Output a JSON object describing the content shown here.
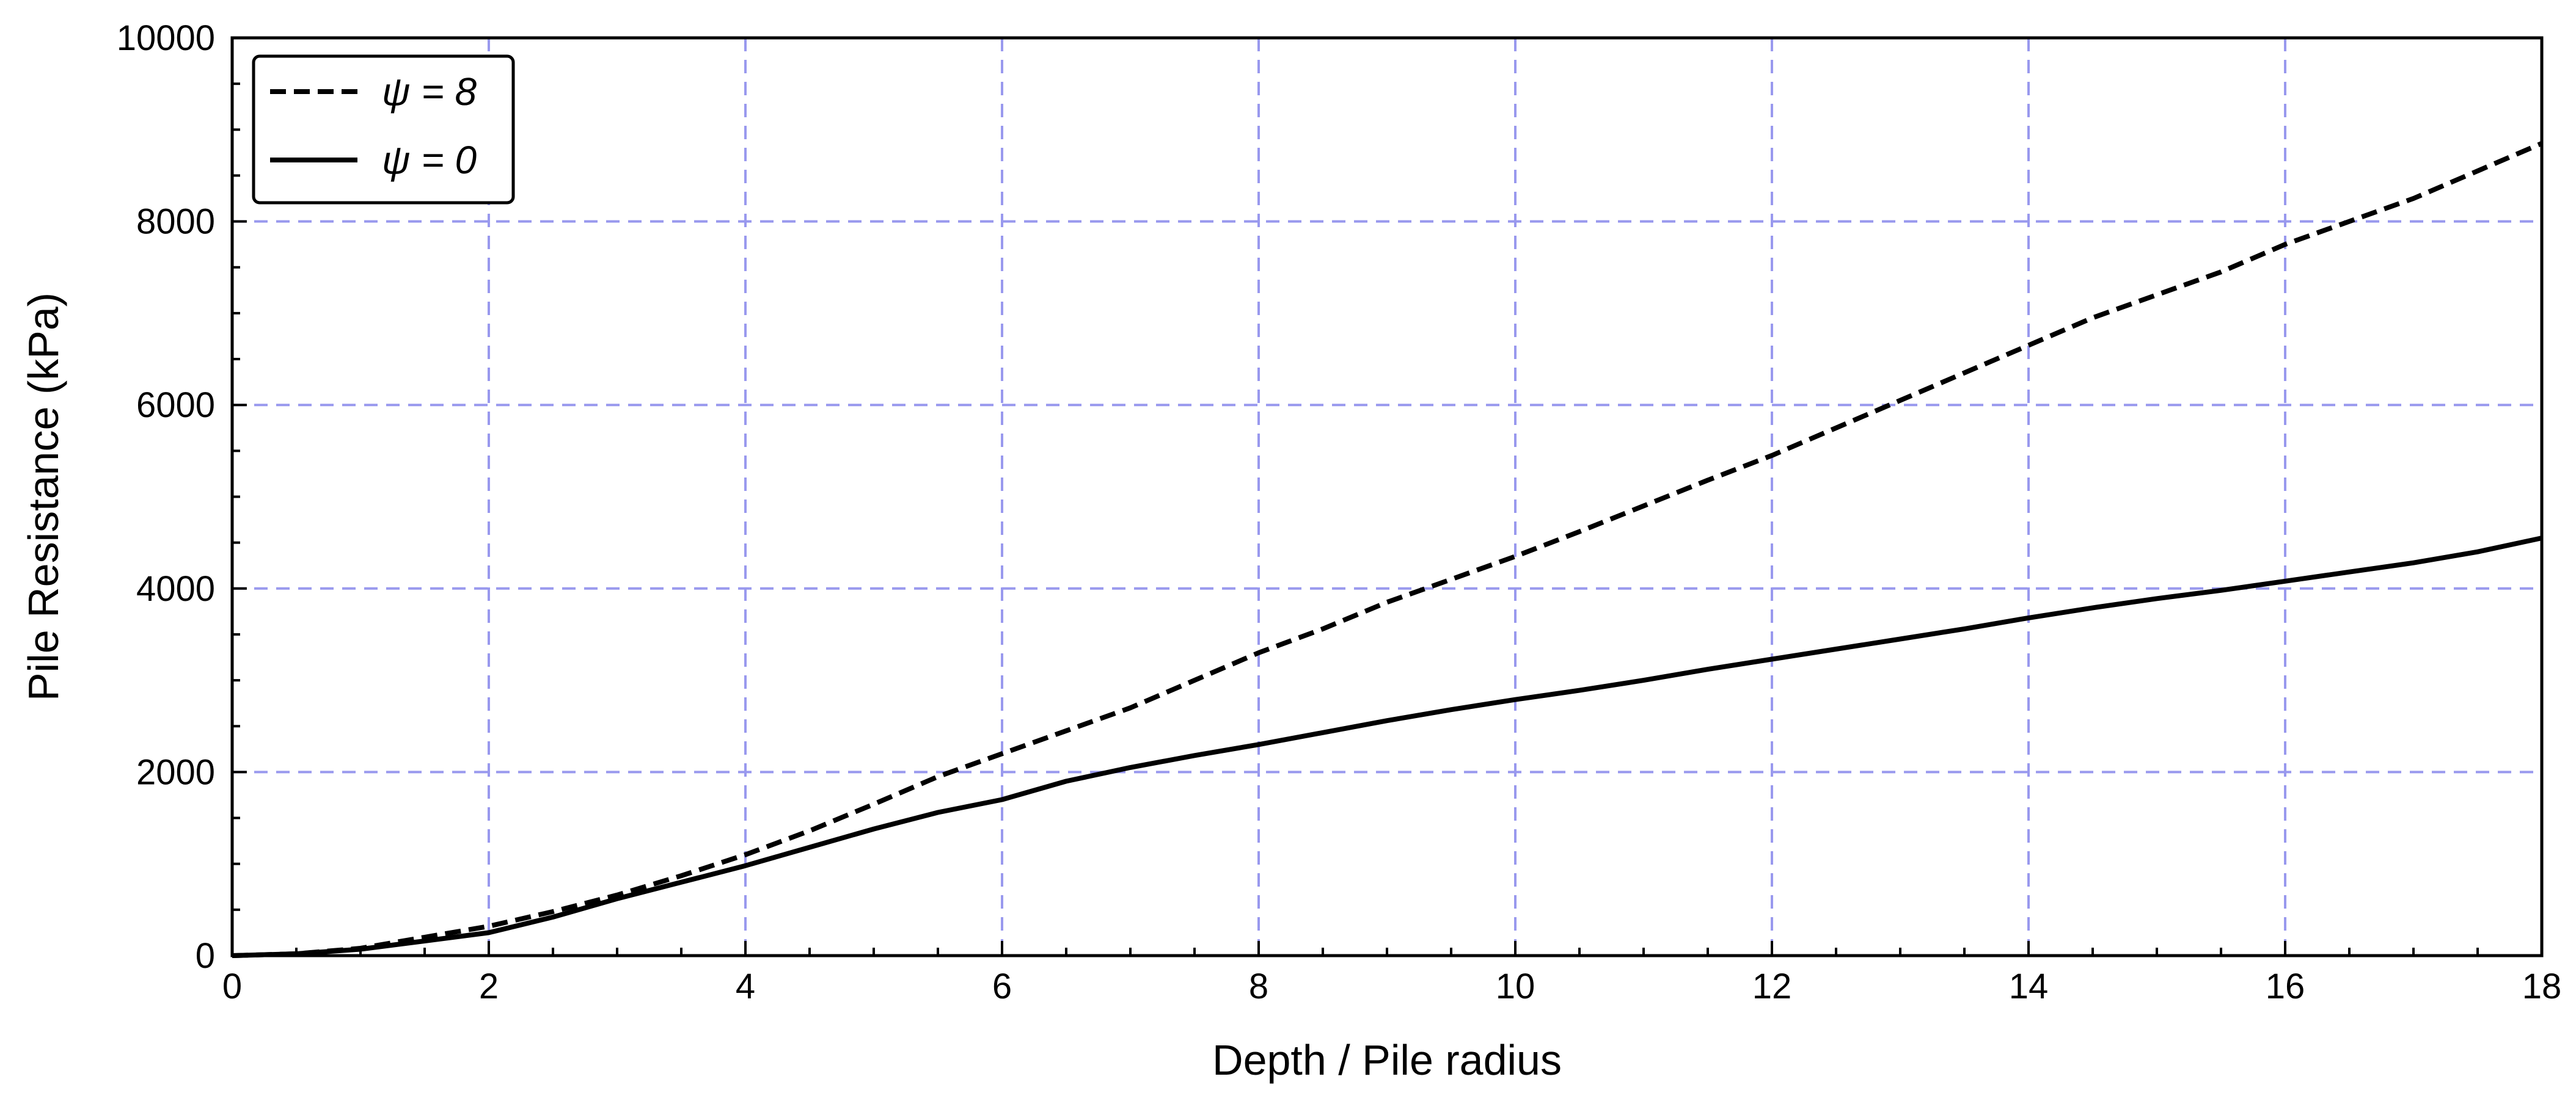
{
  "chart_data": {
    "type": "line",
    "xlabel": "Depth / Pile radius",
    "ylabel": "Pile Resistance (kPa)",
    "xlim": [
      0,
      18
    ],
    "ylim": [
      0,
      10000
    ],
    "xticks": [
      0,
      2,
      4,
      6,
      8,
      10,
      12,
      14,
      16,
      18
    ],
    "yticks": [
      0,
      2000,
      4000,
      6000,
      8000,
      10000
    ],
    "xtick_labels": [
      "0",
      "2",
      "4",
      "6",
      "8",
      "10",
      "12",
      "14",
      "16",
      "18"
    ],
    "ytick_labels": [
      "0",
      "2000",
      "4000",
      "6000",
      "8000",
      "10000"
    ],
    "grid": true,
    "grid_color": "#9999ee",
    "line_color": "#000000",
    "legend_position": "top-left",
    "series": [
      {
        "name": "ψ = 8",
        "style": "dashed",
        "x": [
          0,
          0.5,
          1,
          1.5,
          2,
          2.5,
          3,
          3.5,
          4,
          4.5,
          5,
          5.5,
          6,
          6.5,
          7,
          7.5,
          8,
          8.5,
          9,
          9.5,
          10,
          10.5,
          11,
          11.5,
          12,
          12.5,
          13,
          13.5,
          14,
          14.5,
          15,
          15.5,
          16,
          16.5,
          17,
          17.5,
          18
        ],
        "y": [
          0,
          20,
          80,
          200,
          320,
          480,
          660,
          870,
          1100,
          1360,
          1650,
          1950,
          2200,
          2450,
          2700,
          3000,
          3300,
          3560,
          3850,
          4100,
          4350,
          4620,
          4900,
          5180,
          5450,
          5750,
          6050,
          6350,
          6650,
          6950,
          7200,
          7450,
          7750,
          8000,
          8250,
          8550,
          8850
        ]
      },
      {
        "name": "ψ = 0",
        "style": "solid",
        "x": [
          0,
          0.5,
          1,
          1.5,
          2,
          2.5,
          3,
          3.5,
          4,
          4.5,
          5,
          5.5,
          6,
          6.5,
          7,
          7.5,
          8,
          8.5,
          9,
          9.5,
          10,
          10.5,
          11,
          11.5,
          12,
          12.5,
          13,
          13.5,
          14,
          14.5,
          15,
          15.5,
          16,
          16.5,
          17,
          17.5,
          18
        ],
        "y": [
          0,
          20,
          70,
          160,
          250,
          420,
          620,
          800,
          980,
          1180,
          1380,
          1560,
          1700,
          1900,
          2050,
          2180,
          2300,
          2430,
          2560,
          2680,
          2790,
          2890,
          3000,
          3120,
          3230,
          3340,
          3450,
          3560,
          3680,
          3790,
          3890,
          3980,
          4080,
          4180,
          4280,
          4400,
          4550
        ]
      }
    ]
  }
}
